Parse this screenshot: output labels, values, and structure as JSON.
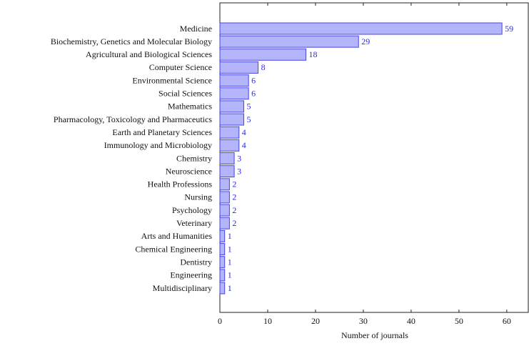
{
  "chart_data": {
    "type": "bar",
    "orientation": "horizontal",
    "x_label": "Number of journals",
    "categories": [
      "Medicine",
      "Biochemistry, Genetics and Molecular Biology",
      "Agricultural and Biological Sciences",
      "Computer Science",
      "Environmental Science",
      "Social Sciences",
      "Mathematics",
      "Pharmacology, Toxicology and Pharmaceutics",
      "Earth and Planetary Sciences",
      "Immunology and Microbiology",
      "Chemistry",
      "Neuroscience",
      "Health Professions",
      "Nursing",
      "Psychology",
      "Veterinary",
      "Arts and Humanities",
      "Chemical Engineering",
      "Dentistry",
      "Engineering",
      "Multidisciplinary"
    ],
    "values": [
      59,
      29,
      18,
      8,
      6,
      6,
      5,
      5,
      4,
      4,
      3,
      3,
      2,
      2,
      2,
      2,
      1,
      1,
      1,
      1,
      1
    ],
    "color": "#b4b4fb",
    "edge_color": "#4646e6",
    "xlim": [
      0,
      64.5
    ],
    "xticks": [
      0,
      10,
      20,
      30,
      40,
      50,
      60
    ],
    "grid": false
  }
}
